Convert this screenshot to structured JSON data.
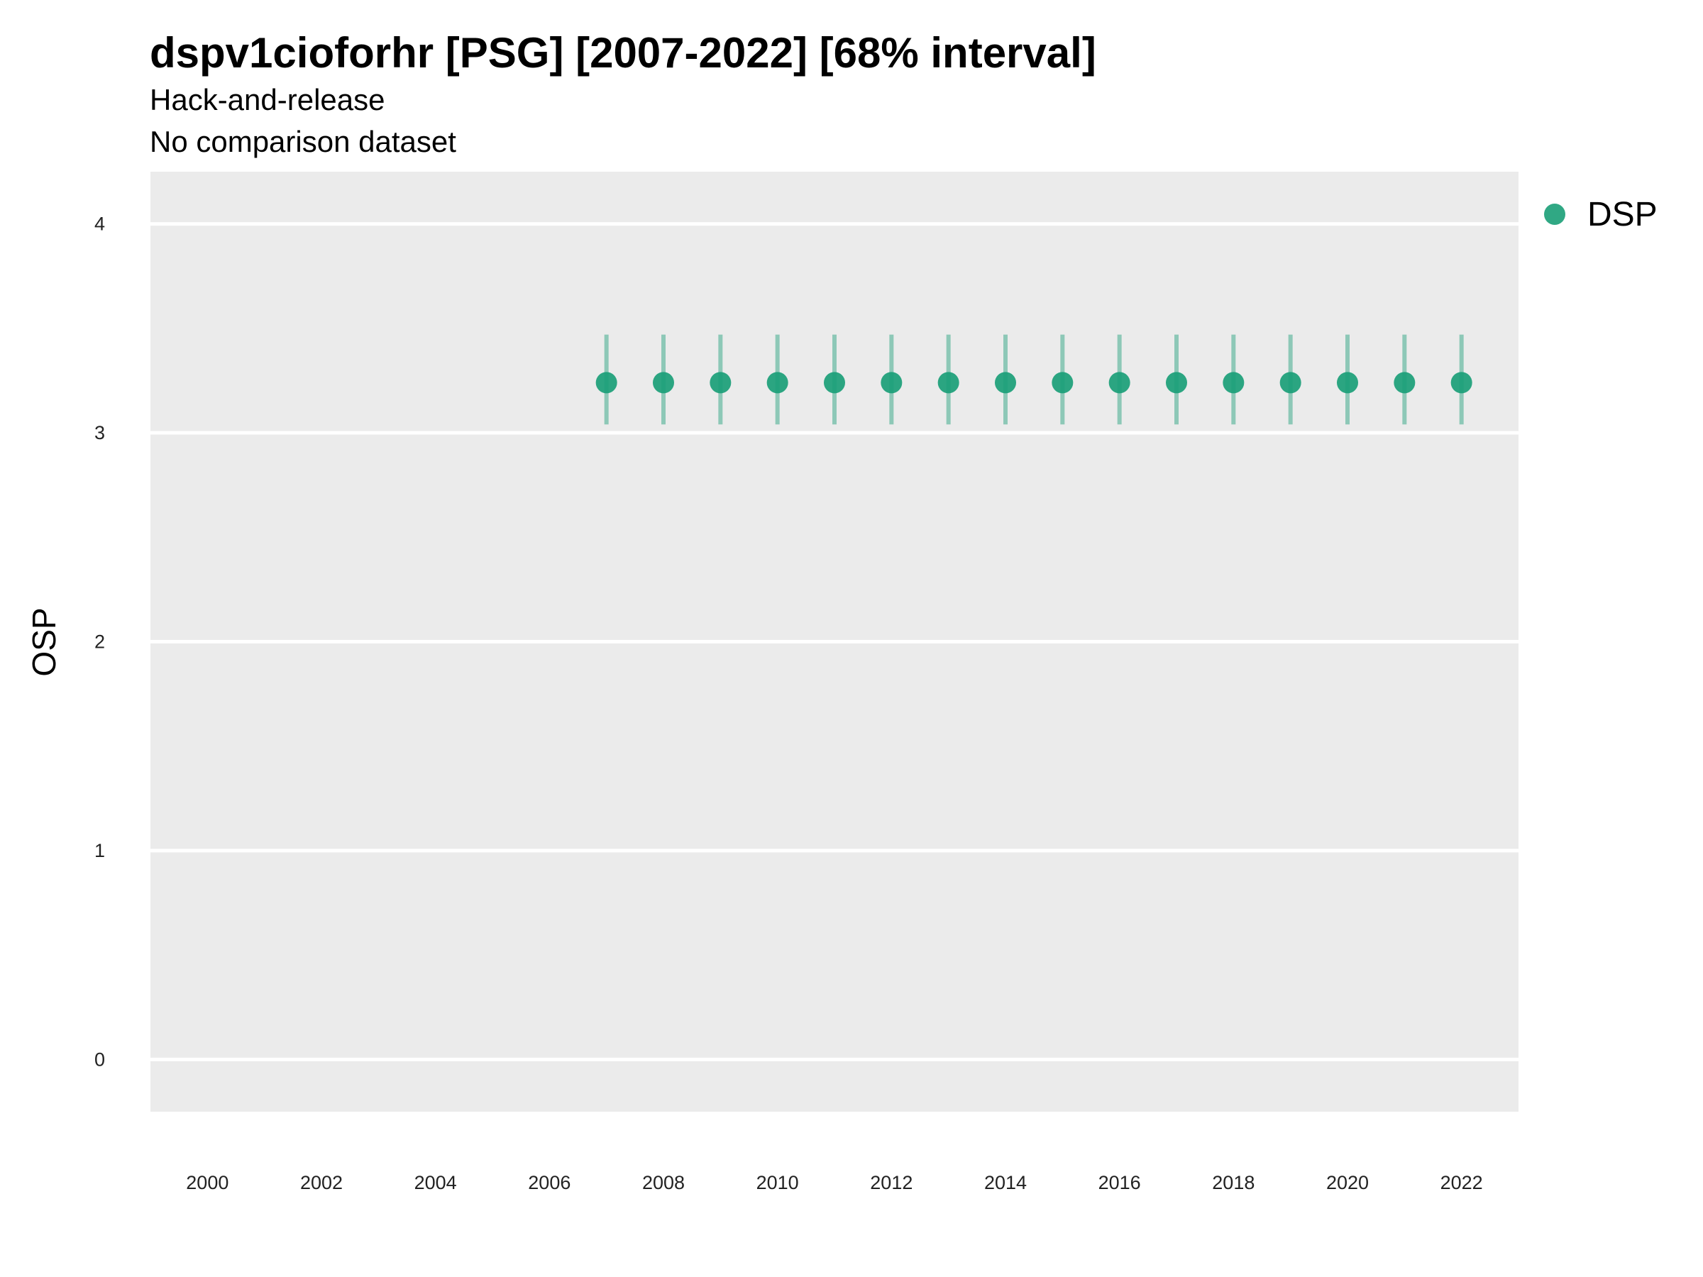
{
  "chart_data": {
    "type": "scatter",
    "title": "dspv1cioforhr [PSG] [2007-2022] [68% interval]",
    "subtitle": [
      "Hack-and-release",
      "No comparison dataset"
    ],
    "xlabel": "",
    "ylabel": "OSP",
    "xlim": [
      1999,
      2023
    ],
    "ylim": [
      -0.25,
      4.25
    ],
    "x_ticks": [
      2000,
      2002,
      2004,
      2006,
      2008,
      2010,
      2012,
      2014,
      2016,
      2018,
      2020,
      2022
    ],
    "y_ticks": [
      0,
      1,
      2,
      3,
      4
    ],
    "grid": true,
    "legend": "right",
    "series": [
      {
        "name": "DSP",
        "color": "#1a9e77",
        "x": [
          2007,
          2008,
          2009,
          2010,
          2011,
          2012,
          2013,
          2014,
          2015,
          2016,
          2017,
          2018,
          2019,
          2020,
          2021,
          2022
        ],
        "y": [
          3.24,
          3.24,
          3.24,
          3.24,
          3.24,
          3.24,
          3.24,
          3.24,
          3.24,
          3.24,
          3.24,
          3.24,
          3.24,
          3.24,
          3.24,
          3.24
        ],
        "lower": [
          3.04,
          3.04,
          3.04,
          3.04,
          3.04,
          3.04,
          3.04,
          3.04,
          3.04,
          3.04,
          3.04,
          3.04,
          3.04,
          3.04,
          3.04,
          3.04
        ],
        "upper": [
          3.47,
          3.47,
          3.47,
          3.47,
          3.47,
          3.47,
          3.47,
          3.47,
          3.47,
          3.47,
          3.47,
          3.47,
          3.47,
          3.47,
          3.47,
          3.47
        ]
      }
    ]
  }
}
